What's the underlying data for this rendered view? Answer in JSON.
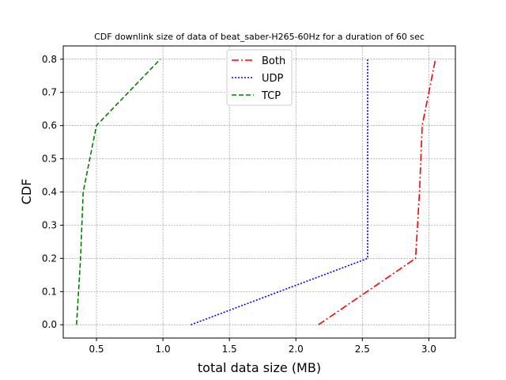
{
  "chart_data": {
    "type": "line",
    "title": "CDF downlink size of data of beat_saber-H265-60Hz for a duration of 60 sec",
    "xlabel": "total data size (MB)",
    "ylabel": "CDF",
    "xlim": [
      0.25,
      3.2
    ],
    "ylim": [
      -0.04,
      0.84
    ],
    "xticks": [
      0.5,
      1.0,
      1.5,
      2.0,
      2.5,
      3.0
    ],
    "xtick_labels": [
      "0.5",
      "1.0",
      "1.5",
      "2.0",
      "2.5",
      "3.0"
    ],
    "yticks": [
      0.0,
      0.1,
      0.2,
      0.3,
      0.4,
      0.5,
      0.6,
      0.7,
      0.8
    ],
    "ytick_labels": [
      "0.0",
      "0.1",
      "0.2",
      "0.3",
      "0.4",
      "0.5",
      "0.6",
      "0.7",
      "0.8"
    ],
    "grid": true,
    "legend_position": "top-center",
    "series": [
      {
        "name": "Both",
        "color": "#ff0000",
        "dash": "dash-dot",
        "x": [
          2.17,
          2.9,
          2.93,
          2.95,
          3.05
        ],
        "y": [
          0.0,
          0.2,
          0.4,
          0.6,
          0.8
        ]
      },
      {
        "name": "UDP",
        "color": "#0000ff",
        "dash": "dotted",
        "x": [
          1.21,
          2.54,
          2.54,
          2.54,
          2.54
        ],
        "y": [
          0.0,
          0.2,
          0.4,
          0.6,
          0.8
        ]
      },
      {
        "name": "TCP",
        "color": "#008000",
        "dash": "dashed",
        "x": [
          0.35,
          0.38,
          0.4,
          0.5,
          0.98
        ],
        "y": [
          0.0,
          0.2,
          0.4,
          0.6,
          0.8
        ]
      }
    ]
  }
}
